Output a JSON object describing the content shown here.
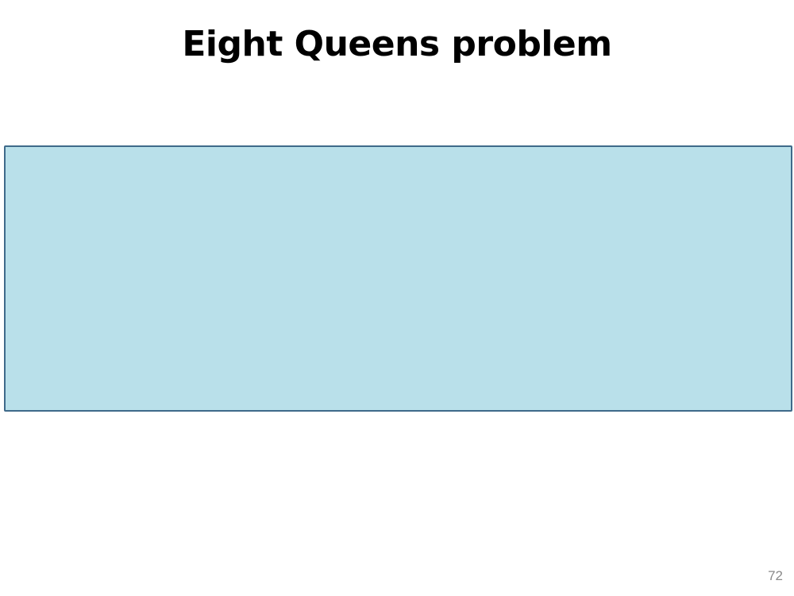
{
  "slide": {
    "title": "Eight Queens problem",
    "page_number": "72"
  },
  "colors": {
    "box_fill": "#b9e0ea",
    "box_border": "#3f6a8a",
    "page_number_text": "#8a8a8a"
  }
}
